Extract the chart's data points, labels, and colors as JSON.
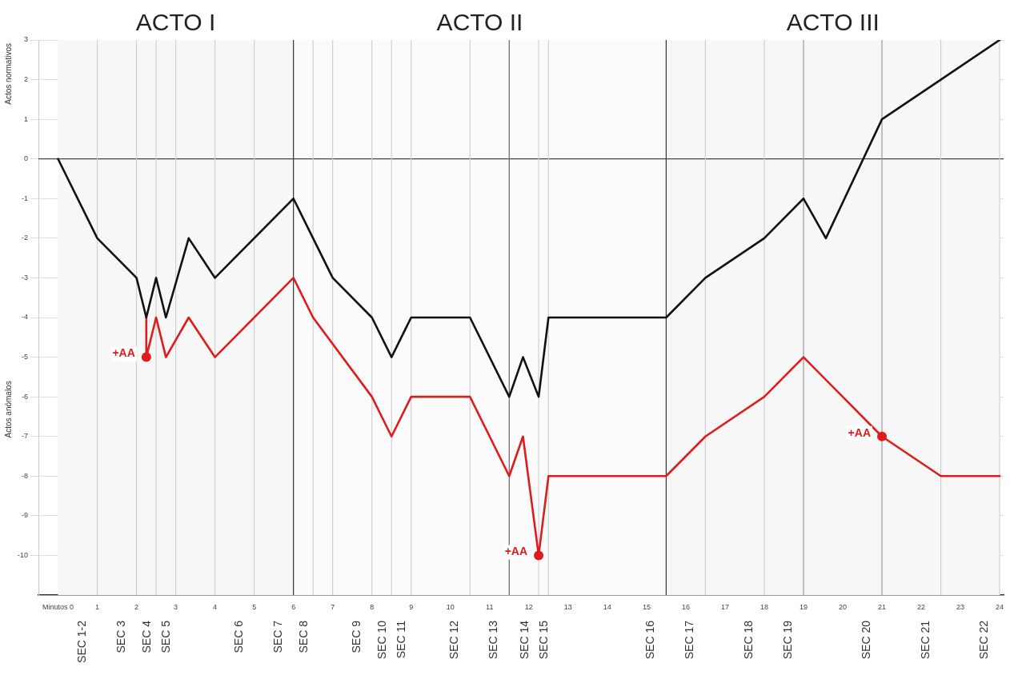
{
  "chart_data": {
    "type": "line",
    "ylabel": "Actos normativos",
    "xlim": [
      -0.5,
      24.1
    ],
    "ylim": [
      -11,
      3
    ],
    "xticks": [
      {
        "value": 0,
        "label": "Minutos 0"
      },
      1,
      2,
      3,
      4,
      5,
      6,
      7,
      8,
      9,
      10,
      11,
      12,
      13,
      14,
      15,
      16,
      17,
      18,
      19,
      20,
      21,
      22,
      23,
      24
    ],
    "yticks": [
      -10,
      -9,
      -8,
      -7,
      -6,
      -5,
      -4,
      -3,
      -2,
      -1,
      0,
      1,
      2,
      3
    ],
    "grid": "y",
    "legend": false,
    "series": [
      {
        "type": "line",
        "color": "#111111",
        "marker": "none",
        "x": [
          0,
          1,
          2,
          2.25,
          2.5,
          2.75,
          3.33,
          4,
          6,
          6.5,
          7,
          8,
          8.5,
          9,
          10.5,
          11.5,
          11.85,
          12.25,
          12.5,
          15.5,
          16.5,
          18,
          19,
          19.57,
          21,
          22.5,
          24
        ],
        "values": [
          0,
          -2,
          -3,
          -4,
          -3,
          -4,
          -2,
          -3,
          -1,
          -2,
          -3,
          -4,
          -5,
          -4,
          -4,
          -6,
          -5,
          -6,
          -4,
          -4,
          -3,
          -2,
          -1,
          -2,
          1,
          2,
          3
        ]
      },
      {
        "type": "line",
        "color": "#dd1c1c",
        "marker": "none",
        "x": [
          2.25,
          2.25,
          2.5,
          2.75,
          3.33,
          4,
          6,
          6.5,
          8,
          8.5,
          9,
          10.5,
          11.5,
          11.85,
          12.25,
          12.5,
          15.5,
          16.5,
          18,
          19,
          21,
          22.5,
          24
        ],
        "values": [
          -4,
          -5,
          -4,
          -5,
          -4,
          -5,
          -3,
          -4,
          -6,
          -7,
          -6,
          -6,
          -8,
          -7,
          -10,
          -8,
          -8,
          -7,
          -6,
          -5,
          -7,
          -8,
          -8
        ]
      },
      {
        "type": "scatter",
        "color": "#dd1c1c",
        "marker": "circle",
        "x": [
          2.25,
          12.25,
          21
        ],
        "values": [
          -5,
          -10,
          -7
        ]
      }
    ],
    "ref_lines": [
      {
        "axis": "y",
        "value": 0,
        "color": "#444444"
      },
      {
        "axis": "x",
        "value": 1,
        "color": "#d0d0d0",
        "label": "SEC 1-2"
      },
      {
        "axis": "x",
        "value": 2,
        "color": "#d0d0d0",
        "label": "SEC 3"
      },
      {
        "axis": "x",
        "value": 2.5,
        "color": "#d0d0d0",
        "label": "SEC 4"
      },
      {
        "axis": "x",
        "value": 3,
        "color": "#d0d0d0",
        "label": "SEC 5"
      },
      {
        "axis": "x",
        "value": 4,
        "color": "#d0d0d0"
      },
      {
        "axis": "x",
        "value": 5,
        "color": "#d0d0d0",
        "label": "SEC 6"
      },
      {
        "axis": "x",
        "value": 6,
        "color": "#333333",
        "label": "SEC 7"
      },
      {
        "axis": "x",
        "value": 6.5,
        "color": "#d0d0d0",
        "label": "SEC 8"
      },
      {
        "axis": "x",
        "value": 7,
        "color": "#d0d0d0"
      },
      {
        "axis": "x",
        "value": 8,
        "color": "#d0d0d0",
        "label": "SEC 9"
      },
      {
        "axis": "x",
        "value": 8.5,
        "color": "#d0d0d0",
        "label": "SEC 10"
      },
      {
        "axis": "x",
        "value": 9,
        "color": "#d0d0d0",
        "label": "SEC 11"
      },
      {
        "axis": "x",
        "value": 10.5,
        "color": "#d0d0d0",
        "label": "SEC 12"
      },
      {
        "axis": "x",
        "value": 11.5,
        "color": "#666666",
        "label": "SEC 13"
      },
      {
        "axis": "x",
        "value": 12.25,
        "color": "#d0d0d0",
        "label": "SEC 14"
      },
      {
        "axis": "x",
        "value": 12.5,
        "color": "#d0d0d0",
        "label": "SEC 15"
      },
      {
        "axis": "x",
        "value": 15.5,
        "color": "#333333",
        "label": "SEC 16"
      },
      {
        "axis": "x",
        "value": 16.5,
        "color": "#d0d0d0",
        "label": "SEC 17"
      },
      {
        "axis": "x",
        "value": 18,
        "color": "#d0d0d0",
        "label": "SEC 18"
      },
      {
        "axis": "x",
        "value": 19,
        "color": "#999999",
        "label": "SEC 19"
      },
      {
        "axis": "x",
        "value": 21,
        "color": "#999999",
        "label": "SEC 20"
      },
      {
        "axis": "x",
        "value": 22.5,
        "color": "#d0d0d0",
        "label": "SEC 21"
      },
      {
        "axis": "x",
        "value": 24,
        "color": "#d0d0d0",
        "label": "SEC 22"
      }
    ],
    "bands": [
      {
        "axis": "x",
        "from": 0,
        "to": 6,
        "label": "ACTO I",
        "color": "#f7f7f7"
      },
      {
        "axis": "x",
        "from": 6,
        "to": 15.5,
        "label": "ACTO II",
        "color": "#fbfbfb"
      },
      {
        "axis": "x",
        "from": 15.5,
        "to": 24,
        "label": "ACTO III",
        "color": "#f7f7f7"
      }
    ],
    "annotations": [
      "Actos anómalos",
      {
        "text": "+AA",
        "x": 2.25,
        "y": -5
      },
      {
        "text": "+AA",
        "x": 12.25,
        "y": -10
      },
      {
        "text": "+AA",
        "x": 21,
        "y": -7
      }
    ]
  }
}
